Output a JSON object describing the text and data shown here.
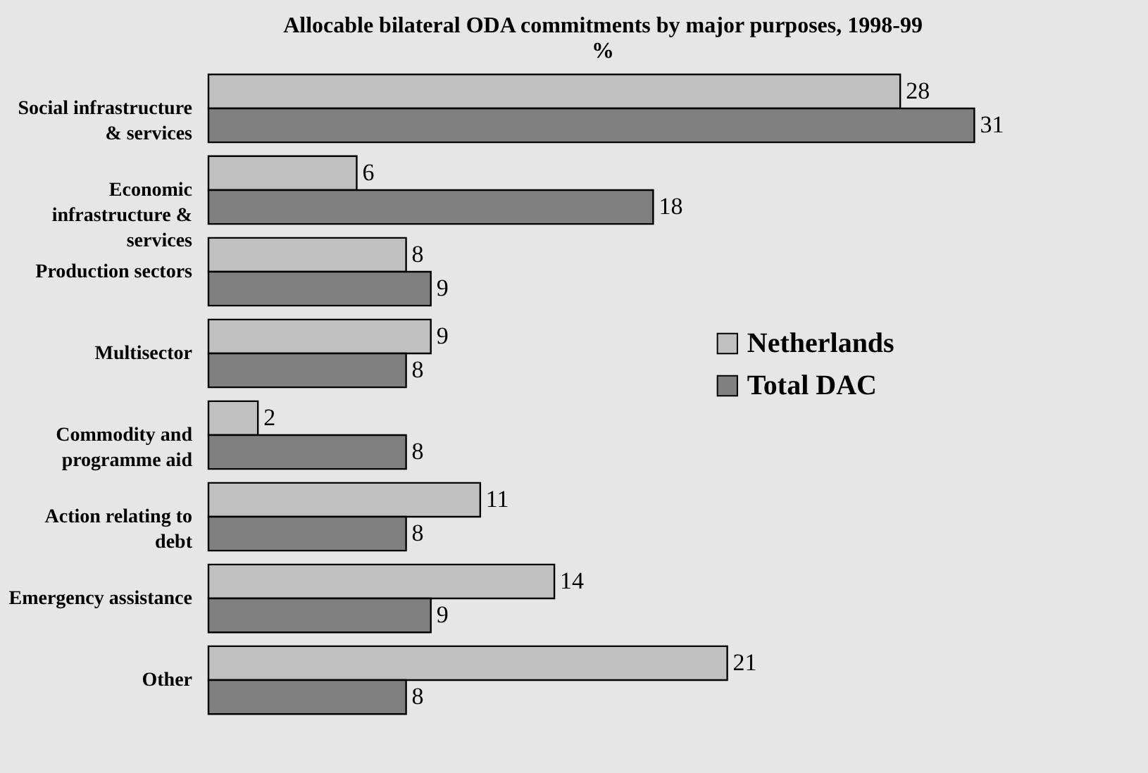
{
  "chart_data": {
    "type": "bar",
    "orientation": "horizontal",
    "title": "Allocable bilateral ODA commitments by major purposes, 1998-99",
    "subtitle": "%",
    "categories": [
      "Social infrastructure & services",
      "Economic infrastructure & services",
      "Production sectors",
      "Multisector",
      "Commodity and programme aid",
      "Action relating to debt",
      "Emergency assistance",
      "Other"
    ],
    "series": [
      {
        "name": "Netherlands",
        "color": "#c0c0c0",
        "values": [
          28,
          6,
          8,
          9,
          2,
          11,
          14,
          21
        ]
      },
      {
        "name": "Total DAC",
        "color": "#808080",
        "values": [
          31,
          18,
          9,
          8,
          8,
          8,
          9,
          8
        ]
      }
    ],
    "data_labels": true,
    "legend": "right",
    "grid": false
  }
}
